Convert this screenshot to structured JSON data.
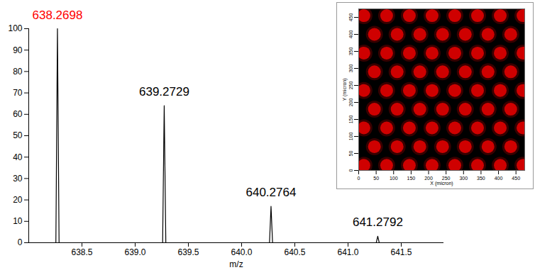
{
  "chart_data": [
    {
      "type": "line",
      "x": [
        638.0,
        638.255,
        638.2698,
        638.285,
        639.258,
        639.2729,
        639.288,
        640.262,
        640.2764,
        640.291,
        641.265,
        641.2792,
        641.293,
        641.9
      ],
      "values": [
        0,
        0,
        100,
        0,
        0,
        64,
        0,
        0,
        17,
        0,
        0,
        3,
        0,
        0
      ],
      "color": "#000000",
      "x_label": "m/z",
      "xlim": [
        638.0,
        641.9
      ],
      "ylim": [
        0,
        100
      ],
      "xticks": [
        638.5,
        {
          "value": 639.0,
          "label": "639.0"
        },
        639.5,
        {
          "value": 640.0,
          "label": "640.0"
        },
        640.5,
        {
          "value": 641.0,
          "label": "641.0"
        },
        641.5
      ],
      "yticks": [
        0,
        10,
        20,
        30,
        40,
        50,
        60,
        70,
        80,
        90,
        100
      ],
      "annotations": [
        {
          "text": "638.2698",
          "x": 638.2698,
          "y": 100,
          "color": "#ff0000"
        },
        {
          "text": "639.2729",
          "x": 639.2729,
          "y": 64,
          "color": "#000000"
        },
        {
          "text": "640.2764",
          "x": 640.2764,
          "y": 17,
          "color": "#000000"
        },
        {
          "text": "641.2792",
          "x": 641.2792,
          "y": 3,
          "color": "#000000"
        }
      ]
    },
    {
      "type": "scatter",
      "x": [
        15,
        80,
        145,
        210,
        275,
        340,
        405,
        470,
        45,
        110,
        175,
        240,
        305,
        370,
        435,
        15,
        80,
        145,
        210,
        275,
        340,
        405,
        470,
        45,
        110,
        175,
        240,
        305,
        370,
        435,
        15,
        80,
        145,
        210,
        275,
        340,
        405,
        470,
        45,
        110,
        175,
        240,
        305,
        370,
        435,
        15,
        80,
        145,
        210,
        275,
        340,
        405,
        470,
        45,
        110,
        175,
        240,
        305,
        370,
        435,
        15,
        80,
        145,
        210,
        275,
        340,
        405,
        470
      ],
      "y": [
        15,
        15,
        15,
        15,
        15,
        15,
        15,
        15,
        70,
        70,
        70,
        70,
        70,
        70,
        70,
        125,
        125,
        125,
        125,
        125,
        125,
        125,
        125,
        180,
        180,
        180,
        180,
        180,
        180,
        180,
        235,
        235,
        235,
        235,
        235,
        235,
        235,
        235,
        290,
        290,
        290,
        290,
        290,
        290,
        290,
        345,
        345,
        345,
        345,
        345,
        345,
        345,
        345,
        400,
        400,
        400,
        400,
        400,
        400,
        400,
        455,
        455,
        455,
        455,
        455,
        455,
        455,
        455
      ],
      "color": "#e00000",
      "x_label": "X (micron)",
      "y_label": "Y (micron)",
      "xlim": [
        0,
        475
      ],
      "ylim": [
        0,
        475
      ],
      "xticks": [
        0,
        50,
        100,
        150,
        200,
        250,
        300,
        350,
        400,
        450
      ],
      "yticks": [
        0,
        50,
        100,
        150,
        200,
        250,
        300,
        350,
        400,
        450
      ]
    }
  ]
}
